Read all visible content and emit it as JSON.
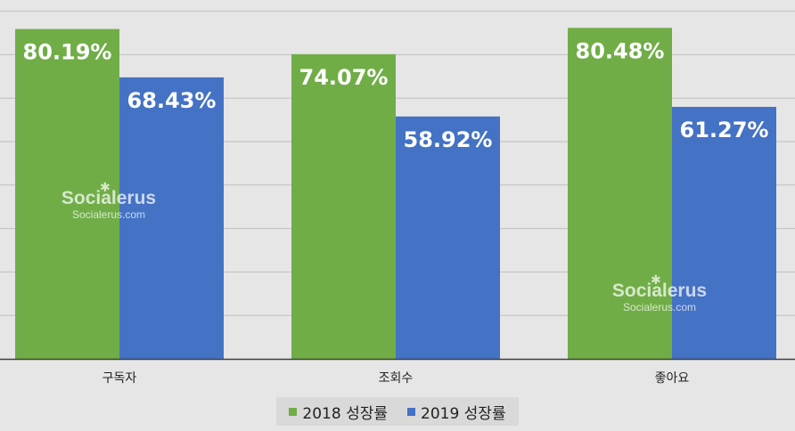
{
  "chart_data": {
    "type": "bar",
    "categories": [
      "구독자",
      "조회수",
      "좋아요"
    ],
    "series": [
      {
        "name": "2018 성장률",
        "values": [
          80.19,
          74.07,
          80.48
        ],
        "labels": [
          "80.19%",
          "74.07%",
          "80.48%"
        ],
        "color": "#70ad47"
      },
      {
        "name": "2019 성장률",
        "values": [
          68.43,
          58.92,
          61.27
        ],
        "labels": [
          "68.43%",
          "58.92%",
          "61.27%"
        ],
        "color": "#4472c4"
      }
    ],
    "ylim": [
      0,
      84
    ],
    "grid": true,
    "legend_position": "bottom"
  },
  "watermarks": [
    {
      "name": "Socialerus",
      "url": "Socialerus.com"
    },
    {
      "name": "Socialerus",
      "url": "Socialerus.com"
    }
  ],
  "colors": {
    "background": "#e6e6e6",
    "gridline": "#bfbfbf",
    "axis": "#404040"
  }
}
